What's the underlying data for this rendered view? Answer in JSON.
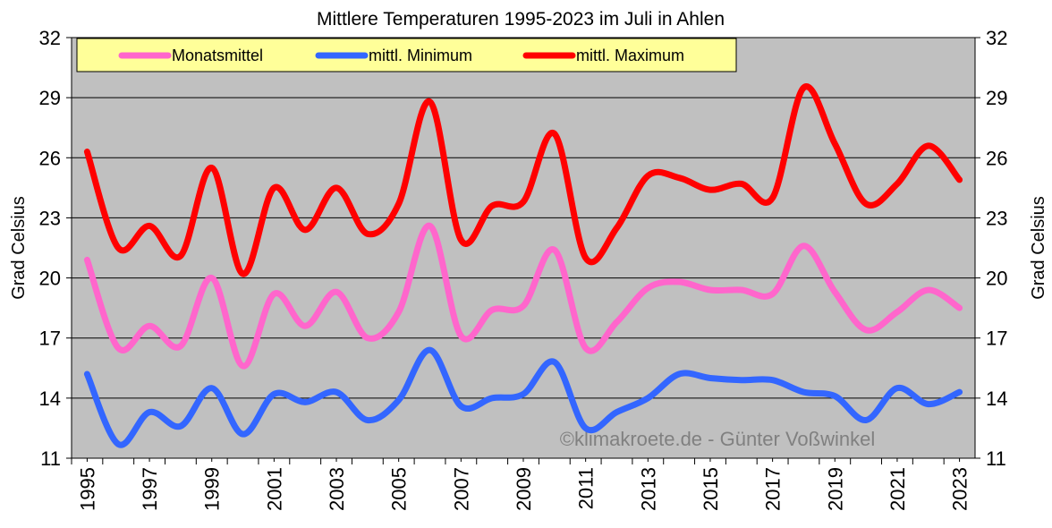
{
  "chart_data": {
    "type": "line",
    "title": "Mittlere Temperaturen 1995-2023 im Juli in Ahlen",
    "ylabel": "Grad Celsius",
    "y2label": "Grad Celsius",
    "annotation": "©klimakroete.de - Günter Voßwinkel",
    "x": [
      1995,
      1996,
      1997,
      1998,
      1999,
      2000,
      2001,
      2002,
      2003,
      2004,
      2005,
      2006,
      2007,
      2008,
      2009,
      2010,
      2011,
      2012,
      2013,
      2014,
      2015,
      2016,
      2017,
      2018,
      2019,
      2020,
      2021,
      2022,
      2023
    ],
    "xlim": [
      1994.5,
      2023.5
    ],
    "xticks": [
      1995,
      1997,
      1999,
      2001,
      2003,
      2005,
      2007,
      2009,
      2011,
      2013,
      2015,
      2017,
      2019,
      2021,
      2023
    ],
    "ylim": [
      11,
      32
    ],
    "yticks": [
      11,
      14,
      17,
      20,
      23,
      26,
      29,
      32
    ],
    "y2lim": [
      11,
      32
    ],
    "y2ticks": [
      11,
      14,
      17,
      20,
      23,
      26,
      29,
      32
    ],
    "grid": true,
    "legend": "top-left",
    "series": [
      {
        "name": "Monatsmittel",
        "color": "#ff66cc",
        "values": [
          20.9,
          16.5,
          17.6,
          16.6,
          20.0,
          15.6,
          19.2,
          17.6,
          19.3,
          17.0,
          18.3,
          22.6,
          17.1,
          18.4,
          18.6,
          21.4,
          16.5,
          17.8,
          19.5,
          19.8,
          19.4,
          19.4,
          19.2,
          21.6,
          19.3,
          17.4,
          18.3,
          19.4,
          18.5
        ]
      },
      {
        "name": "mittl. Minimum",
        "color": "#3366ff",
        "values": [
          15.2,
          11.7,
          13.3,
          12.6,
          14.5,
          12.2,
          14.2,
          13.8,
          14.3,
          12.9,
          13.9,
          16.4,
          13.6,
          14.0,
          14.2,
          15.8,
          12.5,
          13.3,
          14.0,
          15.2,
          15.0,
          14.9,
          14.9,
          14.3,
          14.1,
          12.9,
          14.5,
          13.7,
          14.3
        ]
      },
      {
        "name": "mittl. Maximum",
        "color": "#ff0000",
        "values": [
          26.3,
          21.5,
          22.6,
          21.1,
          25.5,
          20.2,
          24.5,
          22.4,
          24.5,
          22.2,
          23.7,
          28.8,
          21.9,
          23.6,
          23.8,
          27.2,
          21.0,
          22.5,
          25.1,
          25.0,
          24.4,
          24.7,
          24.0,
          29.5,
          26.7,
          23.7,
          24.7,
          26.6,
          24.9
        ]
      }
    ]
  }
}
